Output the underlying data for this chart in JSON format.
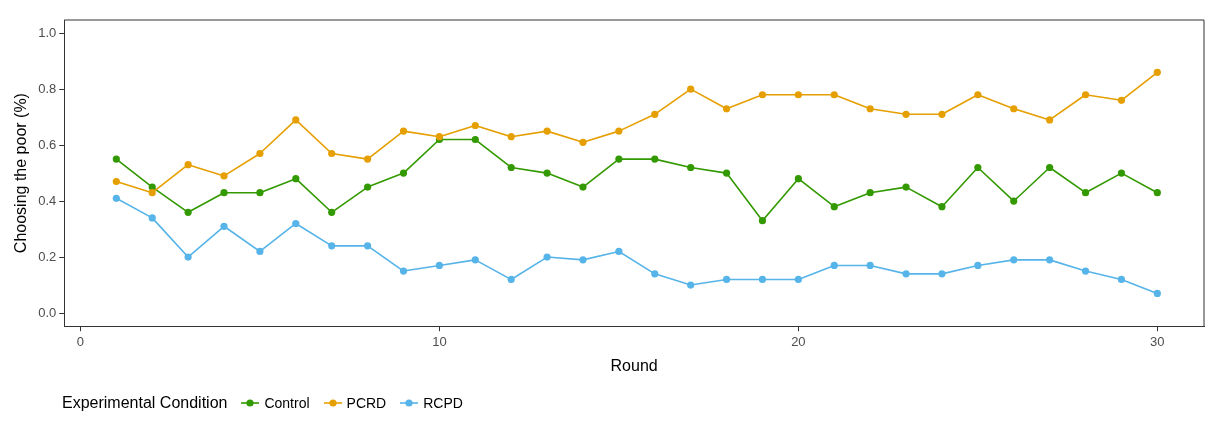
{
  "chart_data": {
    "type": "line",
    "xlabel": "Round",
    "ylabel": "Choosing the poor (%)",
    "legend_title": "Experimental Condition",
    "legend": "bottom",
    "grid": false,
    "marker": "circle",
    "line_style": "solid",
    "x": [
      1,
      2,
      3,
      4,
      5,
      6,
      7,
      8,
      9,
      10,
      11,
      12,
      13,
      14,
      15,
      16,
      17,
      18,
      19,
      20,
      21,
      22,
      23,
      24,
      25,
      26,
      27,
      28,
      29,
      30
    ],
    "xlim": [
      -0.45,
      31.3
    ],
    "xticks": [
      0,
      10,
      20,
      30
    ],
    "ylim": [
      -0.047,
      1.047
    ],
    "yticks": [
      {
        "value": 0,
        "label": "0.0"
      },
      0.2,
      0.4,
      0.6,
      0.8,
      {
        "value": 1,
        "label": "1.0"
      }
    ],
    "series": [
      {
        "name": "Control",
        "color": "#339900",
        "values": [
          0.55,
          0.45,
          0.36,
          0.43,
          0.43,
          0.48,
          0.36,
          0.45,
          0.5,
          0.62,
          0.62,
          0.52,
          0.5,
          0.45,
          0.55,
          0.55,
          0.52,
          0.5,
          0.33,
          0.48,
          0.38,
          0.43,
          0.45,
          0.38,
          0.52,
          0.4,
          0.52,
          0.43,
          0.5,
          0.43
        ]
      },
      {
        "name": "PCRD",
        "color": "#e69f00",
        "values": [
          0.47,
          0.43,
          0.53,
          0.49,
          0.57,
          0.69,
          0.57,
          0.55,
          0.65,
          0.63,
          0.67,
          0.63,
          0.65,
          0.61,
          0.65,
          0.71,
          0.8,
          0.73,
          0.78,
          0.78,
          0.78,
          0.73,
          0.71,
          0.71,
          0.78,
          0.73,
          0.69,
          0.78,
          0.76,
          0.86
        ]
      },
      {
        "name": "RCPD",
        "color": "#56b4e9",
        "values": [
          0.41,
          0.34,
          0.2,
          0.31,
          0.22,
          0.32,
          0.24,
          0.24,
          0.15,
          0.17,
          0.19,
          0.12,
          0.2,
          0.19,
          0.22,
          0.14,
          0.1,
          0.12,
          0.12,
          0.12,
          0.17,
          0.17,
          0.14,
          0.14,
          0.17,
          0.19,
          0.19,
          0.15,
          0.12,
          0.07
        ]
      }
    ]
  }
}
